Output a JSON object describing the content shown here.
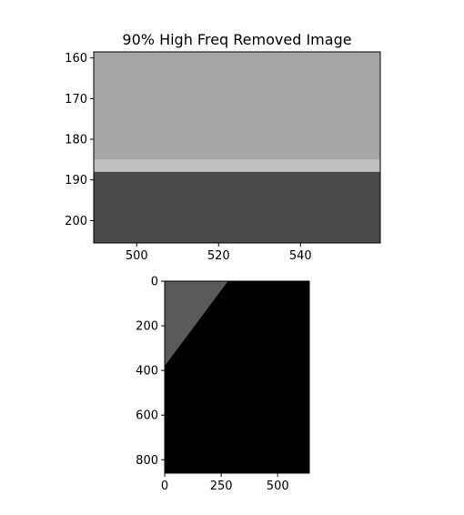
{
  "chart_data": [
    {
      "type": "heatmap",
      "title": "90% High Freq Removed Image",
      "xlabel": "",
      "ylabel": "",
      "xlim": [
        489.5,
        559.5
      ],
      "ylim": [
        205.5,
        158.5
      ],
      "xticks": [
        500,
        520,
        540
      ],
      "yticks": [
        160,
        170,
        180,
        190,
        200
      ],
      "grid": false,
      "colormap": "gray",
      "bands": [
        {
          "y_from": 158.5,
          "y_to": 185.0,
          "shade": "#a6a6a6"
        },
        {
          "y_from": 185.0,
          "y_to": 188.0,
          "shade": "#c0c0c0"
        },
        {
          "y_from": 188.0,
          "y_to": 205.5,
          "shade": "#4a4a4a"
        }
      ]
    },
    {
      "type": "heatmap",
      "title": "",
      "xlabel": "",
      "ylabel": "",
      "xlim": [
        0,
        640
      ],
      "ylim": [
        860,
        0
      ],
      "xticks": [
        0,
        250,
        500
      ],
      "yticks": [
        0,
        200,
        400,
        600,
        800
      ],
      "grid": false,
      "colormap": "gray",
      "background_shade": "#000000",
      "triangle": {
        "points": [
          [
            0,
            0
          ],
          [
            280,
            0
          ],
          [
            0,
            380
          ]
        ],
        "shade": "#5a5a5a"
      }
    }
  ]
}
